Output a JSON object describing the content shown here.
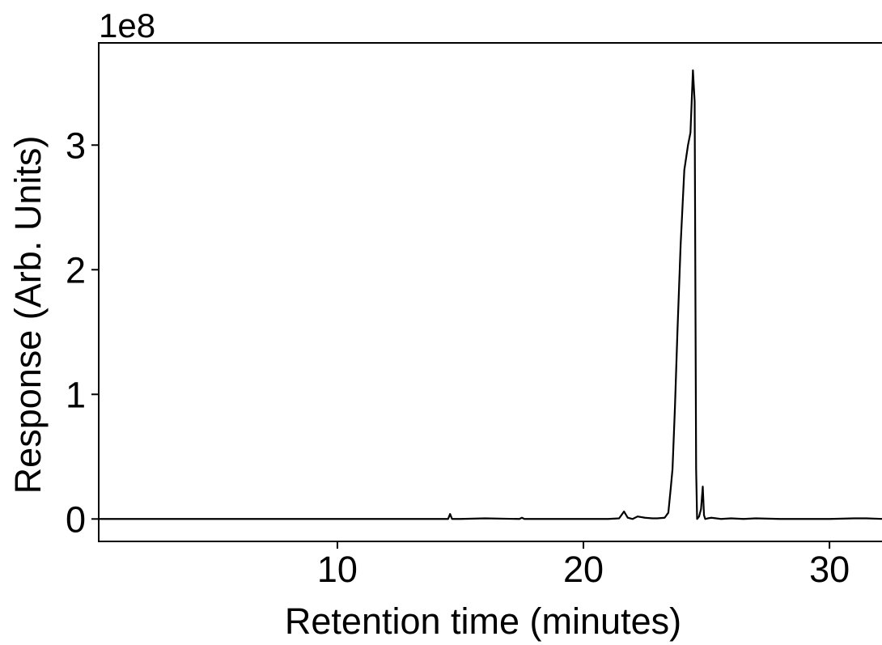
{
  "chart_data": {
    "type": "line",
    "title": "",
    "xlabel": "Retention time (minutes)",
    "ylabel": "Response (Arb. Units)",
    "y_scale_label": "1e8",
    "xlim": [
      0.3,
      32.2
    ],
    "ylim": [
      -0.18,
      3.82
    ],
    "y_multiplier": 100000000,
    "x_ticks": [
      10,
      20,
      30
    ],
    "x_tick_labels": [
      "10",
      "20",
      "30"
    ],
    "y_ticks": [
      0,
      1,
      2,
      3
    ],
    "y_tick_labels": [
      "0",
      "1",
      "2",
      "3"
    ],
    "grid": false,
    "legend": "none",
    "line_color": "#000000",
    "series": [
      {
        "x": [
          0.3,
          5.0,
          10.0,
          14.0,
          14.5,
          14.58,
          14.66,
          15.0,
          16.0,
          17.4,
          17.5,
          17.6,
          18.0,
          20.0,
          21.0,
          21.45,
          21.65,
          21.8,
          22.0,
          22.2,
          22.5,
          22.8,
          23.0,
          23.3,
          23.45,
          23.55,
          23.62,
          23.72,
          23.82,
          23.95,
          24.1,
          24.25,
          24.35,
          24.45,
          24.52,
          24.58,
          24.62,
          24.7,
          24.78,
          24.85,
          24.9,
          24.95,
          25.05,
          25.2,
          25.6,
          26.0,
          26.5,
          27.0,
          28.0,
          29.0,
          30.0,
          31.0,
          31.5,
          32.2
        ],
        "y": [
          0.0,
          0.0,
          0.0,
          0.0,
          0.0,
          0.04,
          0.0,
          0.0,
          0.005,
          0.0,
          0.01,
          0.0,
          0.0,
          0.0,
          0.0,
          0.005,
          0.06,
          0.01,
          0.0,
          0.02,
          0.01,
          0.005,
          0.005,
          0.01,
          0.05,
          0.25,
          0.4,
          0.9,
          1.5,
          2.2,
          2.8,
          3.0,
          3.1,
          3.6,
          3.35,
          0.4,
          0.0,
          0.02,
          0.08,
          0.26,
          0.03,
          0.0,
          0.005,
          0.01,
          0.0,
          0.005,
          0.0,
          0.005,
          0.0,
          0.0,
          0.0,
          0.005,
          0.005,
          0.0
        ]
      }
    ]
  }
}
